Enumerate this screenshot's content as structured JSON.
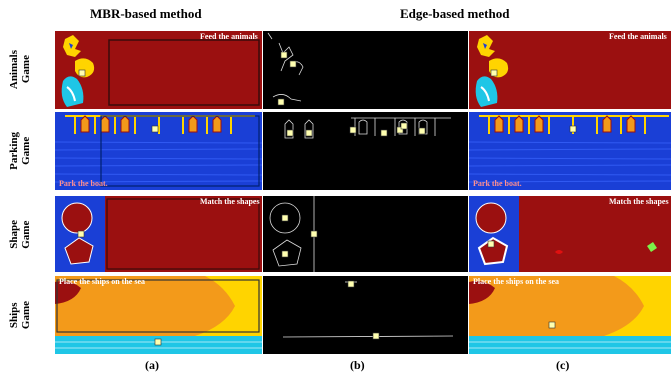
{
  "figure": {
    "column_titles": {
      "mbr": "MBR-based method",
      "edge": "Edge-based method"
    },
    "row_labels": {
      "animals": "Animals\nGame",
      "parking": "Parking\nGame",
      "shape": "Shape\nGame",
      "ships": "Ships\nGame"
    },
    "game_texts": {
      "animals": "Feed the animals",
      "parking": "Park the boat.",
      "shape": "Match the shapes",
      "ships": "Place the ships on the sea"
    },
    "subfigure_labels": [
      "(a)",
      "(b)",
      "(c)"
    ],
    "colors": {
      "dark_red": "#9b1010",
      "blue": "#1a3fd6",
      "yellow": "#ffd400",
      "orange": "#f39a1a",
      "cyan": "#1fc6e6",
      "black": "#000000",
      "marker": "#ffffb0"
    }
  }
}
